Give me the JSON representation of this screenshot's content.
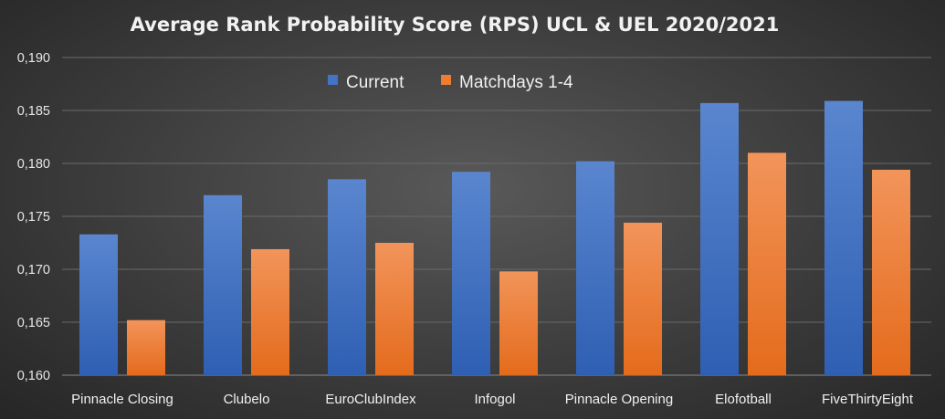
{
  "chart_data": {
    "type": "bar",
    "title": "Average Rank Probability Score (RPS) UCL & UEL 2020/2021",
    "categories": [
      "Pinnacle Closing",
      "Clubelo",
      "EuroClubIndex",
      "Infogol",
      "Pinnacle Opening",
      "Elofotball",
      "FiveThirtyEight"
    ],
    "series": [
      {
        "name": "Current",
        "color": "#4472c4",
        "values": [
          0.1733,
          0.177,
          0.1785,
          0.1792,
          0.1802,
          0.1857,
          0.1859
        ]
      },
      {
        "name": "Matchdays 1-4",
        "color": "#ed7d31",
        "values": [
          0.1652,
          0.1719,
          0.1725,
          0.1698,
          0.1744,
          0.181,
          0.1794
        ]
      }
    ],
    "ylim": [
      0.16,
      0.19
    ],
    "yticks": [
      "0,160",
      "0,165",
      "0,170",
      "0,175",
      "0,180",
      "0,185",
      "0,190"
    ],
    "grid": true,
    "legend_position": "top-center"
  }
}
